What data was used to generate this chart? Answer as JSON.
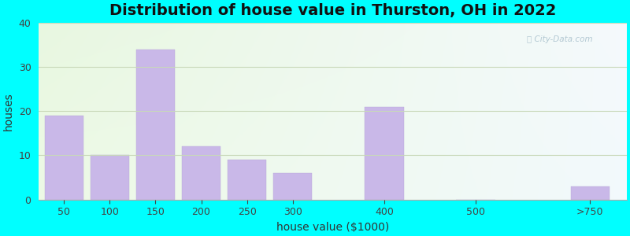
{
  "title": "Distribution of house value in Thurston, OH in 2022",
  "xlabel": "house value ($1000)",
  "ylabel": "houses",
  "bar_labels": [
    "50",
    "100",
    "150",
    "200",
    "250",
    "300",
    "400",
    "500",
    ">750"
  ],
  "bar_values": [
    19,
    10,
    34,
    12,
    9,
    6,
    21,
    0,
    3
  ],
  "bar_color": "#c9b8e8",
  "bar_edgecolor": "#b8a8d8",
  "ylim": [
    0,
    40
  ],
  "yticks": [
    0,
    10,
    20,
    30,
    40
  ],
  "background_cyan": "#00FFFF",
  "title_fontsize": 14,
  "axis_label_fontsize": 10,
  "tick_fontsize": 9,
  "watermark_text": "Ⓢ City-Data.com",
  "grid_color": "#c8d8b8",
  "bar_linewidth": 0.3,
  "bar_positions": [
    0,
    1,
    2,
    3,
    4,
    5,
    7,
    9,
    11.5
  ],
  "bar_width": 0.85,
  "xlim_left": -0.55,
  "xlim_right": 12.3,
  "plot_bg_color_top_left": "#e8f5e0",
  "plot_bg_color_right": "#eaf4f8"
}
